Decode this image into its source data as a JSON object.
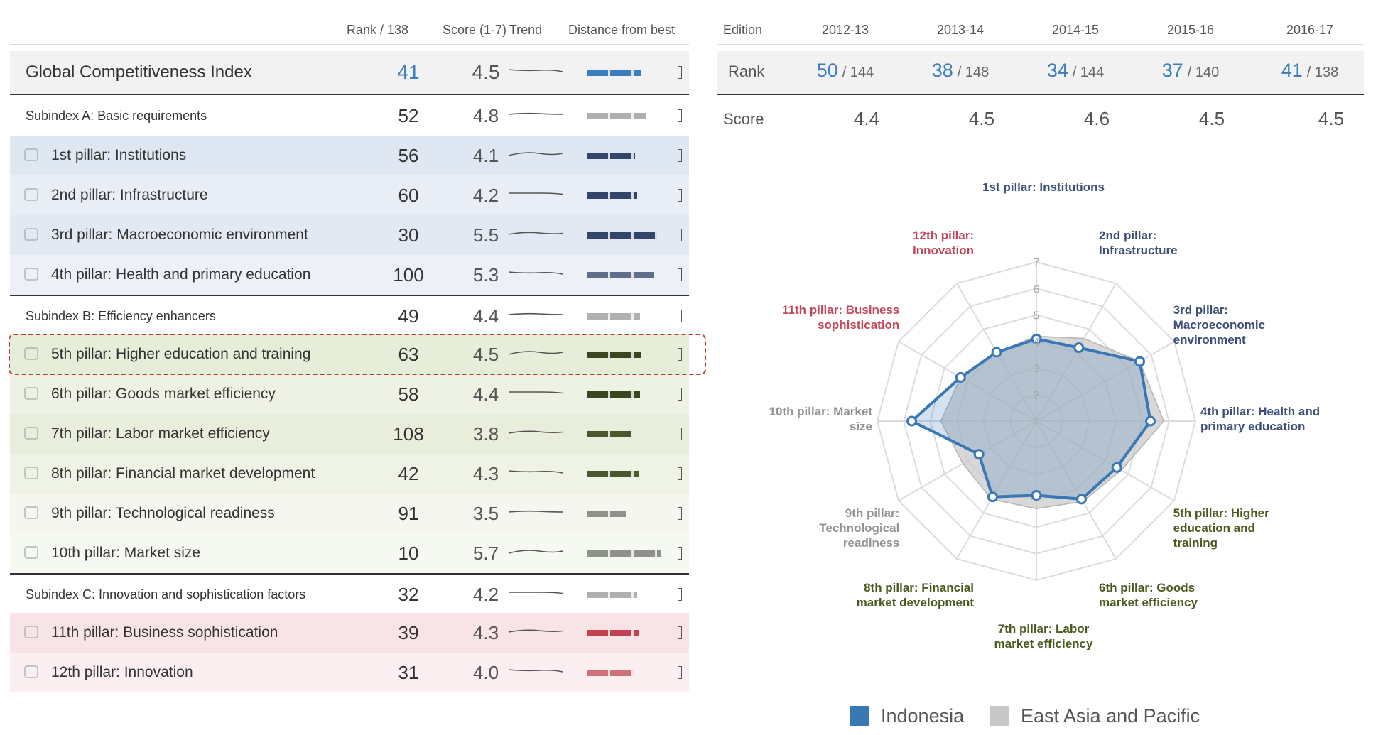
{
  "table": {
    "headers": [
      "Rank / 138",
      "Score (1-7)",
      "Trend",
      "Distance from best"
    ],
    "rows": [
      {
        "name": "Global Competitiveness Index",
        "rank": 41,
        "score": 4.5,
        "color": "#3b7dbf"
      },
      {
        "name": "Subindex A: Basic requirements",
        "rank": 52,
        "score": 4.8,
        "color": "#b0b0b0"
      },
      {
        "name": "1st pillar: Institutions",
        "rank": 56,
        "score": 4.1,
        "color": "#33456b"
      },
      {
        "name": "2nd pillar: Infrastructure",
        "rank": 60,
        "score": 4.2,
        "color": "#33456b"
      },
      {
        "name": "3rd pillar: Macroeconomic environment",
        "rank": 30,
        "score": 5.5,
        "color": "#33456b"
      },
      {
        "name": "4th pillar: Health and primary education",
        "rank": 100,
        "score": 5.3,
        "color": "#5f6f8a"
      },
      {
        "name": "Subindex B: Efficiency enhancers",
        "rank": 49,
        "score": 4.4,
        "color": "#b0b0b0"
      },
      {
        "name": "5th pillar: Higher education and training",
        "rank": 63,
        "score": 4.5,
        "color": "#3b4520"
      },
      {
        "name": "6th pillar: Goods market efficiency",
        "rank": 58,
        "score": 4.4,
        "color": "#3b4520"
      },
      {
        "name": "7th pillar: Labor market efficiency",
        "rank": 108,
        "score": 3.8,
        "color": "#4c5730"
      },
      {
        "name": "8th pillar: Financial market development",
        "rank": 42,
        "score": 4.3,
        "color": "#4c5730"
      },
      {
        "name": "9th pillar: Technological readiness",
        "rank": 91,
        "score": 3.5,
        "color": "#8f928a"
      },
      {
        "name": "10th pillar: Market size",
        "rank": 10,
        "score": 5.7,
        "color": "#8f928a"
      },
      {
        "name": "Subindex C: Innovation and sophistication factors",
        "rank": 32,
        "score": 4.2,
        "color": "#b0b0b0"
      },
      {
        "name": "11th pillar: Business sophistication",
        "rank": 39,
        "score": 4.3,
        "color": "#c5414f"
      },
      {
        "name": "12th pillar: Innovation",
        "rank": 31,
        "score": {
          "value": 4,
          "label": "4.0"
        },
        "color": "#d0707a"
      }
    ]
  },
  "editions": {
    "label": "Edition",
    "years": [
      "2012-13",
      "2013-14",
      "2014-15",
      "2015-16",
      "2016-17"
    ],
    "rank_label": "Rank",
    "ranks": [
      50,
      38,
      34,
      37,
      41
    ],
    "rank_totals": [
      "/ 144",
      "/ 148",
      "/ 144",
      "/ 140",
      "/ 138"
    ],
    "score_label": "Score",
    "scores": [
      4.4,
      4.5,
      4.6,
      4.5,
      4.5
    ]
  },
  "chart_data": {
    "type": "radar",
    "categories": [
      "1st pillar: Institutions",
      "2nd pillar: Infrastructure",
      "3rd pillar: Macroeconomic environment",
      "4th pillar: Health and primary education",
      "5th pillar: Higher education and training",
      "6th pillar: Goods market efficiency",
      "7th pillar: Labor market efficiency",
      "8th pillar: Financial market development",
      "9th pillar: Technological readiness",
      "10th pillar: Market size",
      "11th pillar: Business sophistication",
      "12th pillar: Innovation"
    ],
    "label_colors": [
      "#3d4f78",
      "#3d4f78",
      "#3d4f78",
      "#3d4f78",
      "#4b5a1f",
      "#4b5a1f",
      "#4b5a1f",
      "#4b5a1f",
      "#8f9490",
      "#8f9490",
      "#c2485a",
      "#c2485a"
    ],
    "series": [
      {
        "name": "East Asia and Pacific",
        "color": "#c8c8c8",
        "values": [
          4.2,
          4.6,
          5.5,
          5.8,
          4.7,
          4.5,
          4.3,
          4.4,
          4.2,
          4.6,
          4.3,
          4.0
        ]
      },
      {
        "name": "Indonesia",
        "color": "#3a78b5",
        "values": [
          4.1,
          4.2,
          5.5,
          5.3,
          4.5,
          4.4,
          3.8,
          4.3,
          3.5,
          5.7,
          4.3,
          4.0
        ]
      }
    ],
    "ylim": [
      1,
      7
    ],
    "yticks": [
      1,
      2,
      3,
      4,
      5,
      6,
      7
    ]
  }
}
